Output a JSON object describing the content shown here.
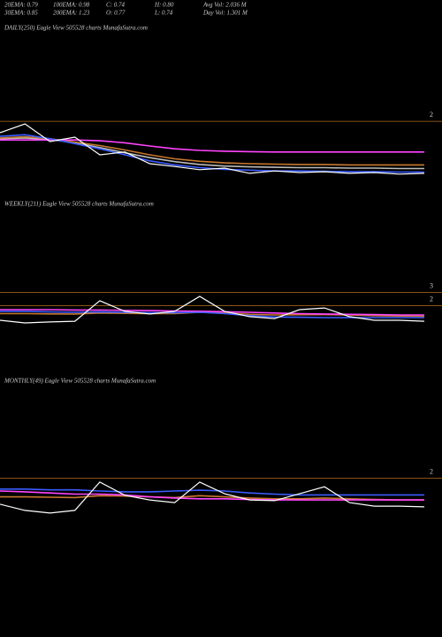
{
  "header": {
    "row1": [
      "20EMA: 0.79",
      "100EMA: 0.98",
      "C: 0.74",
      "H: 0.80",
      "Avg Vol: 2.036  M"
    ],
    "row2": [
      "30EMA: 0.85",
      "200EMA: 1.23",
      "O: 0.77",
      "L: 0.74",
      "Day Vol: 1.301  M"
    ]
  },
  "chart_data": [
    {
      "type": "line",
      "title": "DAILY(250) Eagle  View  505528 charts MunafaSutra.com",
      "ylim": [
        0,
        2.2
      ],
      "yticks": [
        2
      ],
      "grid": true,
      "series": [
        {
          "name": "Price",
          "color": "#ffffff",
          "values": [
            1.65,
            1.87,
            1.43,
            1.54,
            1.1,
            1.17,
            0.88,
            0.81,
            0.73,
            0.77,
            0.64,
            0.7,
            0.66,
            0.68,
            0.64,
            0.66,
            0.62,
            0.64
          ]
        },
        {
          "name": "EMA blue",
          "color": "#3a5cff",
          "values": [
            1.56,
            1.6,
            1.5,
            1.38,
            1.25,
            1.1,
            0.95,
            0.85,
            0.78,
            0.74,
            0.72,
            0.7,
            0.7,
            0.69,
            0.68,
            0.68,
            0.67,
            0.67
          ]
        },
        {
          "name": "EMA magenta",
          "color": "#ff44ff",
          "values": [
            1.47,
            1.47,
            1.47,
            1.47,
            1.45,
            1.4,
            1.32,
            1.25,
            1.21,
            1.19,
            1.18,
            1.17,
            1.17,
            1.17,
            1.17,
            1.17,
            1.17,
            1.17
          ]
        },
        {
          "name": "EMA orange",
          "color": "#c8782e",
          "values": [
            1.52,
            1.55,
            1.5,
            1.42,
            1.33,
            1.22,
            1.1,
            1.0,
            0.94,
            0.9,
            0.88,
            0.87,
            0.86,
            0.86,
            0.85,
            0.85,
            0.85,
            0.85
          ]
        },
        {
          "name": "EMA gray",
          "color": "#bbbbbb",
          "values": [
            1.5,
            1.52,
            1.48,
            1.4,
            1.28,
            1.15,
            1.03,
            0.93,
            0.86,
            0.82,
            0.8,
            0.79,
            0.78,
            0.78,
            0.77,
            0.77,
            0.76,
            0.76
          ]
        }
      ]
    },
    {
      "type": "line",
      "title": "WEEKLY(211) Eagle  View  505528 charts MunafaSutra.com",
      "ylim": [
        0,
        3.5
      ],
      "yticks": [
        3,
        2
      ],
      "grid": true,
      "series": [
        {
          "name": "Price",
          "color": "#ffffff",
          "values": [
            0.7,
            0.5,
            0.57,
            0.63,
            2.17,
            1.37,
            1.17,
            1.37,
            2.5,
            1.37,
            0.97,
            0.83,
            1.5,
            1.63,
            0.97,
            0.7,
            0.7,
            0.63
          ]
        },
        {
          "name": "EMA blue",
          "color": "#3a5cff",
          "values": [
            1.37,
            1.37,
            1.33,
            1.3,
            1.33,
            1.3,
            1.27,
            1.27,
            1.3,
            1.2,
            1.05,
            0.95,
            0.93,
            0.9,
            0.9,
            0.9,
            0.9,
            0.9
          ]
        },
        {
          "name": "EMA magenta",
          "color": "#ff44ff",
          "values": [
            1.5,
            1.5,
            1.5,
            1.47,
            1.47,
            1.45,
            1.43,
            1.4,
            1.38,
            1.35,
            1.3,
            1.25,
            1.2,
            1.17,
            1.15,
            1.13,
            1.1,
            1.1
          ]
        },
        {
          "name": "EMA orange",
          "color": "#c8782e",
          "values": [
            1.2,
            1.2,
            1.18,
            1.17,
            1.25,
            1.22,
            1.2,
            1.2,
            1.3,
            1.25,
            1.15,
            1.1,
            1.12,
            1.13,
            1.1,
            1.05,
            1.02,
            1.0
          ]
        }
      ]
    },
    {
      "type": "line",
      "title": "MONTHLY(49) Eagle  View  505528 charts MunafaSutra.com",
      "ylim": [
        0,
        2.4
      ],
      "yticks": [
        2
      ],
      "grid": true,
      "series": [
        {
          "name": "Price",
          "color": "#ffffff",
          "values": [
            1.26,
            1.1,
            1.03,
            1.1,
            1.83,
            1.49,
            1.37,
            1.3,
            1.83,
            1.53,
            1.37,
            1.35,
            1.53,
            1.71,
            1.3,
            1.21,
            1.21,
            1.19
          ]
        },
        {
          "name": "EMA blue",
          "color": "#3a5cff",
          "values": [
            1.65,
            1.65,
            1.63,
            1.63,
            1.6,
            1.58,
            1.58,
            1.6,
            1.62,
            1.6,
            1.55,
            1.52,
            1.5,
            1.5,
            1.5,
            1.5,
            1.5,
            1.5
          ]
        },
        {
          "name": "EMA magenta",
          "color": "#ff44ff",
          "values": [
            1.6,
            1.58,
            1.55,
            1.52,
            1.52,
            1.5,
            1.45,
            1.42,
            1.4,
            1.4,
            1.38,
            1.37,
            1.37,
            1.37,
            1.37,
            1.37,
            1.37,
            1.37
          ]
        },
        {
          "name": "EMA orange",
          "color": "#c8782e",
          "values": [
            1.45,
            1.45,
            1.44,
            1.43,
            1.48,
            1.47,
            1.45,
            1.43,
            1.48,
            1.45,
            1.42,
            1.4,
            1.4,
            1.42,
            1.4,
            1.38,
            1.37,
            1.37
          ]
        }
      ]
    }
  ]
}
